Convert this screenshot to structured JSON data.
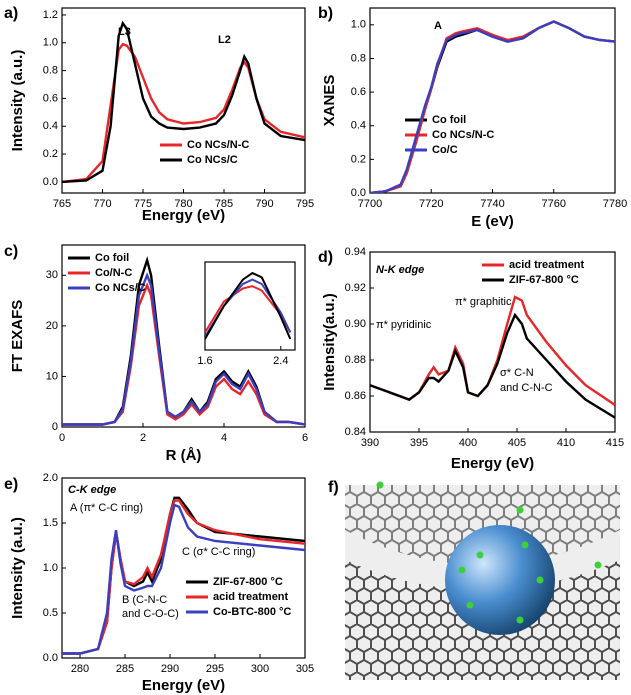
{
  "chart_data": [
    {
      "type": "line",
      "panel_label": "a)",
      "x_label": "Energy (eV)",
      "y_label": "Intensity (a.u.)",
      "annotations": [
        "L3",
        "L2"
      ],
      "x": [
        765,
        768,
        770,
        771,
        772,
        772.5,
        773,
        774,
        775,
        776,
        777,
        778,
        780,
        782,
        784,
        785,
        786,
        787,
        787.5,
        788,
        789,
        790,
        792,
        795
      ],
      "series": [
        {
          "name": "Co NCs/N-C",
          "color": "#e8262a",
          "values": [
            0,
            0.02,
            0.15,
            0.55,
            0.95,
            0.99,
            0.98,
            0.9,
            0.75,
            0.6,
            0.5,
            0.45,
            0.42,
            0.43,
            0.46,
            0.52,
            0.66,
            0.82,
            0.86,
            0.82,
            0.6,
            0.45,
            0.36,
            0.32
          ]
        },
        {
          "name": "Co NCs/C",
          "color": "#000000",
          "values": [
            0,
            0.01,
            0.08,
            0.4,
            1.05,
            1.14,
            1.1,
            0.85,
            0.6,
            0.47,
            0.42,
            0.39,
            0.38,
            0.39,
            0.42,
            0.48,
            0.62,
            0.8,
            0.9,
            0.85,
            0.6,
            0.42,
            0.33,
            0.3
          ]
        }
      ],
      "xlim": [
        765,
        795
      ],
      "ylim": [
        -0.08,
        1.25
      ],
      "xticks": [
        765,
        770,
        775,
        780,
        785,
        790,
        795
      ],
      "yticks": [
        {
          "value": 0,
          "label": "0.0"
        },
        0.2,
        0.4,
        0.6,
        0.8,
        {
          "value": 1,
          "label": "1.0"
        },
        1.2
      ]
    },
    {
      "type": "line",
      "panel_label": "b)",
      "x_label": "E (eV)",
      "y_label": "XANES",
      "annotations": [
        "A"
      ],
      "x": [
        7700,
        7705,
        7710,
        7712,
        7715,
        7718,
        7720,
        7722,
        7725,
        7728,
        7730,
        7735,
        7740,
        7745,
        7750,
        7755,
        7760,
        7765,
        7770,
        7775,
        7780
      ],
      "series": [
        {
          "name": "Co foil",
          "color": "#000000",
          "values": [
            0,
            0.01,
            0.04,
            0.12,
            0.3,
            0.5,
            0.62,
            0.75,
            0.9,
            0.93,
            0.94,
            0.97,
            0.93,
            0.9,
            0.92,
            0.98,
            1.02,
            0.98,
            0.93,
            0.91,
            0.9
          ]
        },
        {
          "name": "Co NCs/N-C",
          "color": "#e8262a",
          "values": [
            0,
            0.01,
            0.04,
            0.12,
            0.3,
            0.5,
            0.62,
            0.76,
            0.92,
            0.95,
            0.96,
            0.98,
            0.94,
            0.91,
            0.93,
            0.98,
            1.02,
            0.98,
            0.93,
            0.91,
            0.9
          ]
        },
        {
          "name": "Co/C",
          "color": "#3b3fbf",
          "values": [
            0,
            0.01,
            0.05,
            0.14,
            0.33,
            0.52,
            0.63,
            0.77,
            0.91,
            0.94,
            0.95,
            0.97,
            0.93,
            0.9,
            0.92,
            0.98,
            1.02,
            0.98,
            0.93,
            0.91,
            0.9
          ]
        }
      ],
      "xlim": [
        7700,
        7780
      ],
      "ylim": [
        0,
        1.1
      ],
      "xticks": [
        7700,
        7720,
        7740,
        7760,
        7780
      ],
      "yticks": [
        {
          "value": 0,
          "label": "0.0"
        },
        0.2,
        0.4,
        0.6,
        0.8,
        {
          "value": 1,
          "label": "1.0"
        }
      ]
    },
    {
      "type": "line",
      "panel_label": "c)",
      "x_label": "R (Å)",
      "y_label": "FT EXAFS",
      "x": [
        0,
        0.5,
        1,
        1.3,
        1.5,
        1.7,
        1.9,
        2.1,
        2.2,
        2.4,
        2.6,
        2.8,
        3,
        3.2,
        3.4,
        3.6,
        3.8,
        4,
        4.2,
        4.4,
        4.6,
        4.8,
        5,
        5.3,
        5.6,
        6
      ],
      "series": [
        {
          "name": "Co foil",
          "color": "#000000",
          "values": [
            0.5,
            0.5,
            0.5,
            1,
            4,
            14,
            28,
            33,
            30,
            16,
            3,
            2,
            3,
            5.5,
            3,
            5,
            9.5,
            11,
            9,
            8,
            11,
            8,
            3,
            1,
            1,
            0.5
          ]
        },
        {
          "name": "Co/N-C",
          "color": "#e8262a",
          "values": [
            0.5,
            0.5,
            0.5,
            1,
            3,
            12,
            24,
            28,
            26,
            14,
            2.5,
            1.5,
            2.5,
            4.5,
            2.5,
            4,
            8,
            9.5,
            7.5,
            6.5,
            9,
            6.5,
            2.5,
            1,
            1,
            0.5
          ]
        },
        {
          "name": "Co NCs/C",
          "color": "#3b3fbf",
          "values": [
            0.5,
            0.5,
            0.5,
            1,
            3.5,
            13,
            26,
            30,
            28,
            15,
            3,
            2,
            3,
            5,
            3,
            4.5,
            9,
            10.5,
            8.5,
            7.5,
            10.5,
            7.5,
            3,
            1,
            1,
            0.5
          ]
        }
      ],
      "xlim": [
        0,
        6
      ],
      "ylim": [
        0,
        36
      ],
      "xticks": [
        0,
        2,
        4,
        6
      ],
      "yticks": [
        0,
        10,
        20,
        30
      ]
    },
    {
      "type": "line",
      "x": [
        1.6,
        1.8,
        2.0,
        2.1,
        2.2,
        2.4,
        2.5
      ],
      "series": [
        {
          "color": "#e8262a",
          "values": [
            8,
            22,
            28,
            29,
            27,
            16,
            8
          ]
        },
        {
          "color": "#3b3fbf",
          "values": [
            6,
            20,
            30,
            32,
            30,
            17,
            8
          ]
        },
        {
          "color": "#000000",
          "values": [
            5,
            20,
            32,
            35,
            33,
            15,
            5
          ]
        }
      ],
      "xlim": [
        1.6,
        2.55
      ],
      "ylim": [
        0,
        40
      ],
      "xticks": [
        1.6,
        2.4
      ]
    },
    {
      "type": "line",
      "panel_label": "d)",
      "x_label": "Energy (eV)",
      "y_label": "Intensity(a.u.)",
      "annotations": [
        "N-K edge",
        "π* graphitic",
        "π* pyridinic",
        "σ* C-N",
        "and C-N-C"
      ],
      "x": [
        390,
        392,
        394,
        395,
        396,
        396.5,
        397,
        398,
        398.7,
        399.5,
        400,
        401,
        402,
        403,
        404,
        404.8,
        405.5,
        406,
        408,
        410,
        412,
        415
      ],
      "series": [
        {
          "name": "acid treatment",
          "color": "#e8262a",
          "values": [
            0.866,
            0.862,
            0.858,
            0.862,
            0.872,
            0.876,
            0.872,
            0.874,
            0.887,
            0.878,
            0.862,
            0.86,
            0.866,
            0.88,
            0.9,
            0.915,
            0.913,
            0.905,
            0.89,
            0.877,
            0.866,
            0.855
          ]
        },
        {
          "name": "ZIF-67-800 °C",
          "color": "#000000",
          "values": [
            0.866,
            0.862,
            0.858,
            0.862,
            0.87,
            0.87,
            0.868,
            0.874,
            0.885,
            0.876,
            0.862,
            0.86,
            0.866,
            0.878,
            0.895,
            0.905,
            0.9,
            0.892,
            0.88,
            0.868,
            0.858,
            0.848
          ]
        }
      ],
      "xlim": [
        390,
        415
      ],
      "ylim": [
        0.84,
        0.94
      ],
      "xticks": [
        390,
        395,
        400,
        405,
        410,
        415
      ],
      "yticks": [
        0.84,
        0.86,
        0.88,
        {
          "value": 0.9,
          "label": "0.90"
        },
        0.92,
        0.94
      ]
    },
    {
      "type": "line",
      "panel_label": "e)",
      "x_label": "Energy (eV)",
      "y_label": "Intensity (a.u.)",
      "annotations": [
        "C-K edge",
        "A (π* C-C ring)",
        "B (C-N-C",
        "and C-O-C)",
        "C (σ* C-C ring)"
      ],
      "x": [
        278,
        280,
        282,
        283,
        283.5,
        284,
        284.5,
        285,
        286,
        287,
        287.5,
        288,
        289,
        290,
        290.5,
        291,
        292,
        293,
        295,
        300,
        305
      ],
      "series": [
        {
          "name": "ZIF-67-800 °C",
          "color": "#000000",
          "values": [
            0.05,
            0.05,
            0.1,
            0.4,
            1.0,
            1.4,
            1.1,
            0.85,
            0.8,
            0.85,
            0.95,
            0.85,
            1.1,
            1.6,
            1.78,
            1.78,
            1.65,
            1.5,
            1.4,
            1.35,
            1.3
          ]
        },
        {
          "name": "acid treatment",
          "color": "#e8262a",
          "values": [
            0.05,
            0.05,
            0.1,
            0.4,
            1.0,
            1.38,
            1.1,
            0.85,
            0.82,
            0.9,
            1.0,
            0.9,
            1.15,
            1.6,
            1.75,
            1.75,
            1.6,
            1.5,
            1.42,
            1.32,
            1.27
          ]
        },
        {
          "name": "Co-BTC-800 °C",
          "color": "#3b3fbf",
          "values": [
            0.05,
            0.05,
            0.1,
            0.5,
            1.1,
            1.42,
            1.05,
            0.8,
            0.75,
            0.78,
            0.8,
            0.8,
            1.0,
            1.5,
            1.7,
            1.68,
            1.45,
            1.35,
            1.3,
            1.25,
            1.2
          ]
        }
      ],
      "xlim": [
        278,
        305
      ],
      "ylim": [
        0,
        2
      ],
      "xticks": [
        280,
        285,
        290,
        295,
        300,
        305
      ],
      "yticks": [
        {
          "value": 0,
          "label": "0.0"
        },
        0.5,
        {
          "value": 1,
          "label": "1.0"
        },
        1.5,
        {
          "value": 2,
          "label": "2.0"
        }
      ]
    }
  ],
  "panel_f": {
    "panel_label": "f)"
  }
}
